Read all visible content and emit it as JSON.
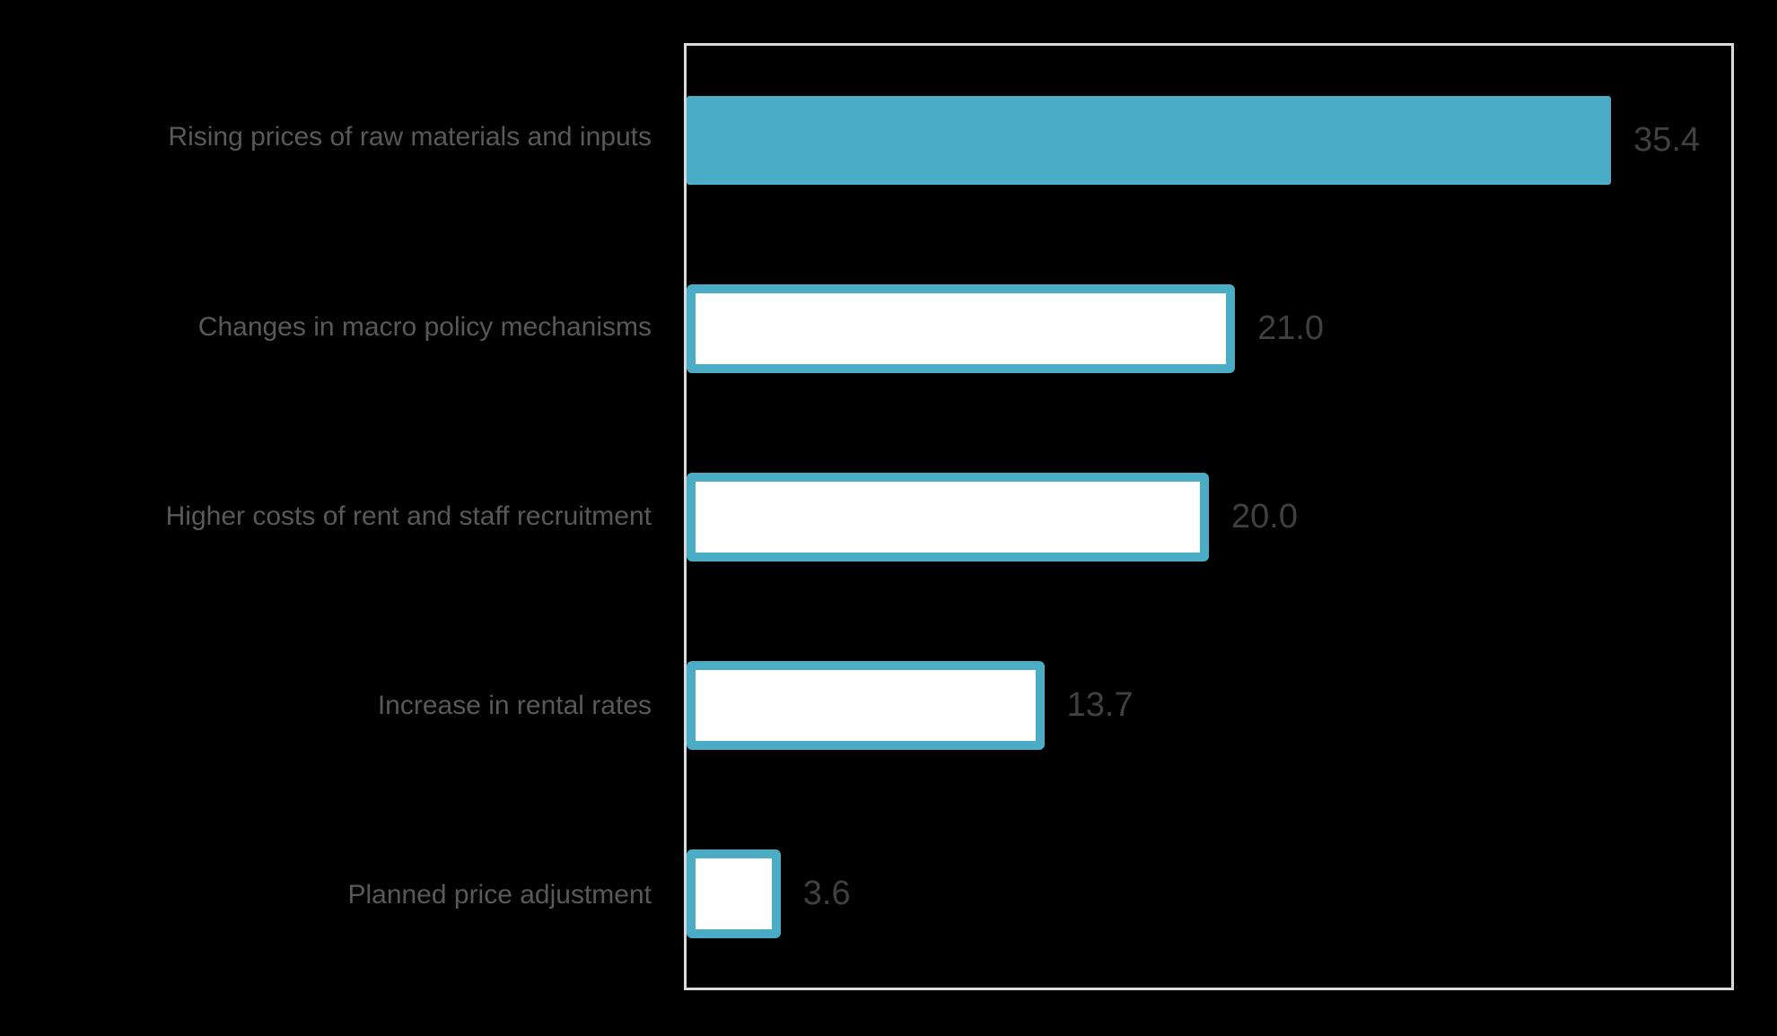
{
  "chart_data": {
    "type": "bar",
    "orientation": "horizontal",
    "title": "",
    "categories": [
      "Rising prices of raw materials and inputs",
      "Changes in macro policy mechanisms",
      "Higher costs of rent and staff recruitment",
      "Increase in rental rates",
      "Planned price adjustment"
    ],
    "values": [
      35.4,
      21.0,
      20.0,
      13.7,
      3.6
    ],
    "value_labels": [
      "35.4",
      "21.0",
      "20.0",
      "13.7",
      "3.6"
    ],
    "xlim": [
      0,
      40
    ],
    "grid": false,
    "legend": false,
    "highlighted_category": "Rising prices of raw materials and inputs"
  },
  "rows": [
    {
      "label": "Rising prices of raw materials and inputs",
      "value": 35.4,
      "value_label": "35.4",
      "filled": true
    },
    {
      "label": "Changes in macro policy mechanisms",
      "value": 21.0,
      "value_label": "21.0",
      "filled": false
    },
    {
      "label": "Higher costs of rent and staff recruitment",
      "value": 20.0,
      "value_label": "20.0",
      "filled": false
    },
    {
      "label": "Increase in rental rates",
      "value": 13.7,
      "value_label": "13.7",
      "filled": false
    },
    {
      "label": "Planned price adjustment",
      "value": 3.6,
      "value_label": "3.6",
      "filled": false
    }
  ],
  "colors": {
    "background": "#000000",
    "accent_teal": "#4BACC6",
    "bar_fill_default": "#FFFFFF",
    "plot_border": "#D9D9D9",
    "category_label": "#595959",
    "value_label": "#404040"
  }
}
